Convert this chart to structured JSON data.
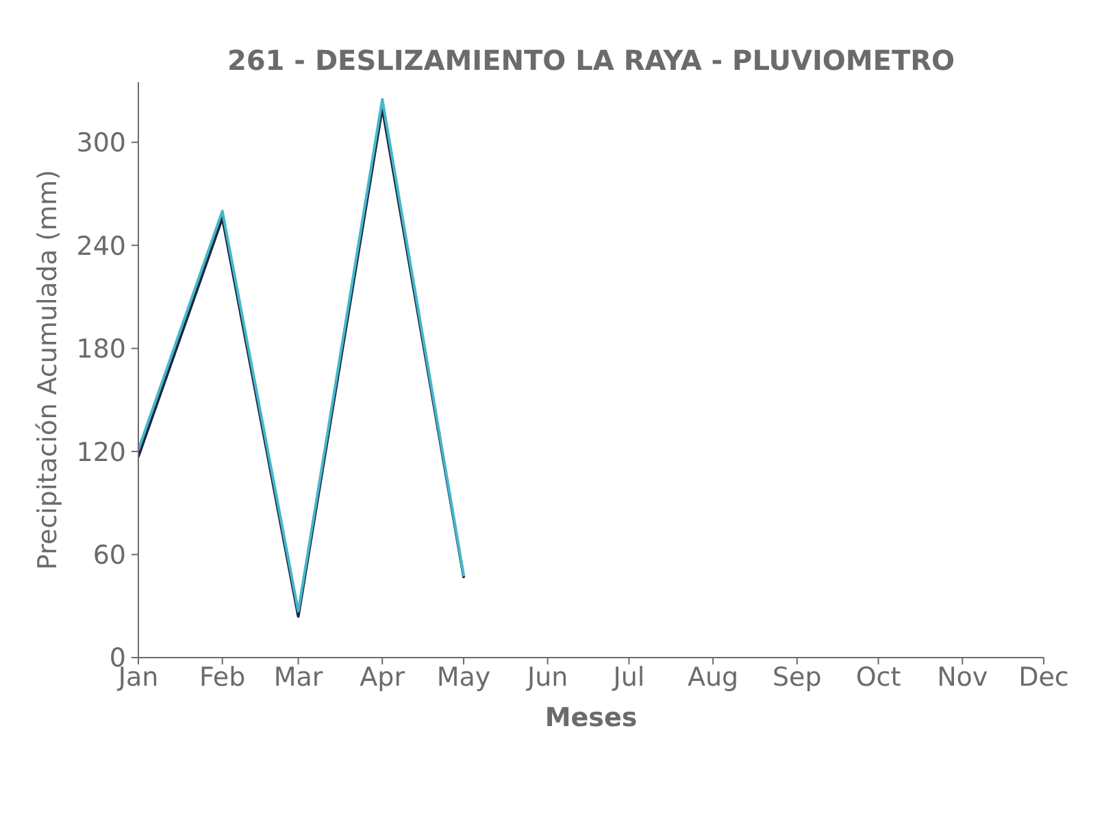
{
  "chart_data": {
    "type": "line",
    "title": "261 - DESLIZAMIENTO LA RAYA - PLUVIOMETRO",
    "xlabel": "Meses",
    "ylabel": "Precipitación Acumulada (mm)",
    "x": [
      "--01-01",
      "--02-01",
      "--03-01",
      "--04-01",
      "--05-01"
    ],
    "series": [
      {
        "color": "#1c2340",
        "values": [
          117,
          256,
          24,
          320,
          47
        ]
      },
      {
        "color": "#45b8c9",
        "values": [
          121,
          260,
          27,
          325,
          48
        ]
      }
    ],
    "xlim": [
      "--01-01",
      "--12-01"
    ],
    "xticks": [
      {
        "value": "--01-01",
        "label": "Jan"
      },
      {
        "value": "--02-01",
        "label": "Feb"
      },
      {
        "value": "--03-01",
        "label": "Mar"
      },
      {
        "value": "--04-01",
        "label": "Apr"
      },
      {
        "value": "--05-01",
        "label": "May"
      },
      {
        "value": "--06-01",
        "label": "Jun"
      },
      {
        "value": "--07-01",
        "label": "Jul"
      },
      {
        "value": "--08-01",
        "label": "Aug"
      },
      {
        "value": "--09-01",
        "label": "Sep"
      },
      {
        "value": "--10-01",
        "label": "Oct"
      },
      {
        "value": "--11-01",
        "label": "Nov"
      },
      {
        "value": "--12-01",
        "label": "Dec"
      }
    ],
    "ylim": [
      0,
      335
    ],
    "yticks": [
      0,
      60,
      120,
      180,
      240,
      300
    ],
    "marker": "none",
    "line_style": "solid"
  }
}
